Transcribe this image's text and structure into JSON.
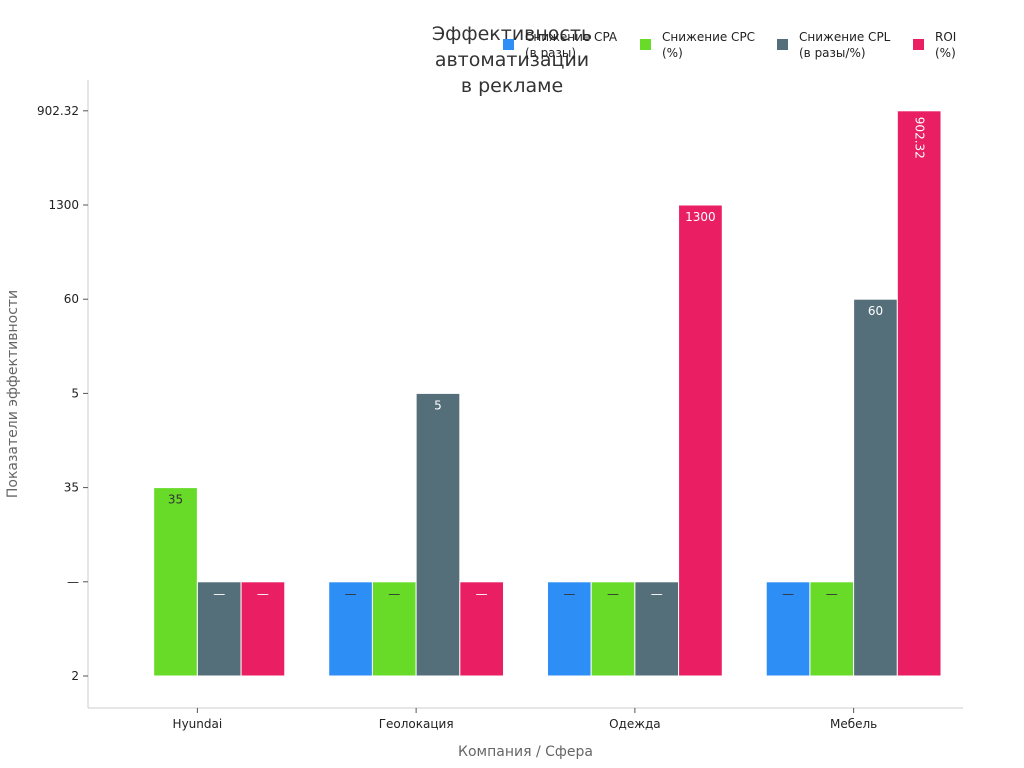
{
  "chart_data": {
    "type": "bar",
    "title_lines": [
      "Эффективность",
      "автоматизации",
      "в рекламе"
    ],
    "xlabel": "Компания / Сфера",
    "ylabel": "Показатели эффективности",
    "categories": [
      "Hyundai",
      "Геолокация",
      "Одежда",
      "Мебель"
    ],
    "y_ticks": [
      "2",
      "—",
      "35",
      "5",
      "60",
      "1300",
      "902.32"
    ],
    "series": [
      {
        "name_lines": [
          "Снижение CPA",
          "(в разы)"
        ],
        "color": "#2d8ef5",
        "label_color": "#333333",
        "values": [
          null,
          "—",
          "—",
          "—"
        ]
      },
      {
        "name_lines": [
          "Снижение CPC",
          "(%)"
        ],
        "color": "#67db28",
        "label_color": "#333333",
        "values": [
          "35",
          "—",
          "—",
          "—"
        ]
      },
      {
        "name_lines": [
          "Снижение CPL",
          "(в разы/%)"
        ],
        "color": "#546e7a",
        "label_color": "#ffffff",
        "values": [
          "—",
          "5",
          "—",
          "60"
        ]
      },
      {
        "name_lines": [
          "ROI",
          "(%)"
        ],
        "color": "#e91e63",
        "label_color": "#ffffff",
        "values": [
          "—",
          "—",
          "1300",
          "902.32"
        ]
      }
    ]
  }
}
